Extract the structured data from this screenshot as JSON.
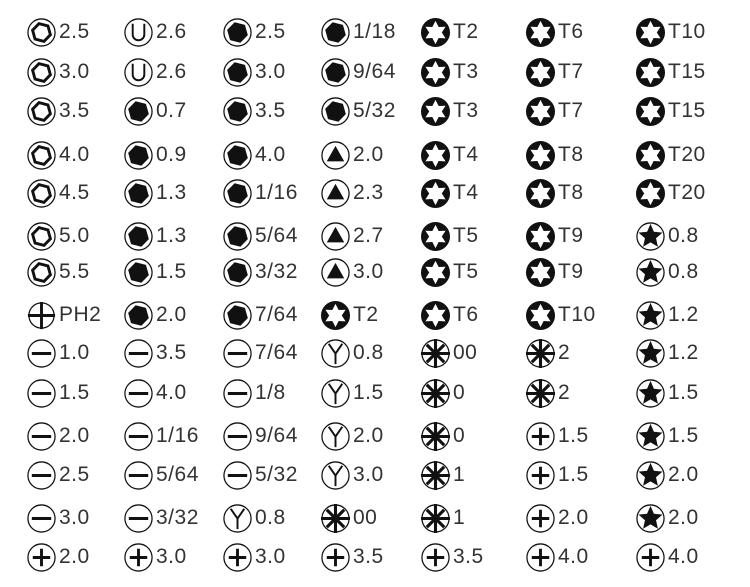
{
  "columns": [
    [
      {
        "icon": "hex-socket-icon",
        "label": "2.5"
      },
      {
        "icon": "hex-socket-icon",
        "label": "3.0"
      },
      {
        "icon": "hex-socket-icon",
        "label": "3.5"
      },
      {
        "icon": "hex-socket-icon",
        "label": "4.0"
      },
      {
        "icon": "hex-socket-icon",
        "label": "4.5"
      },
      {
        "icon": "hex-socket-icon",
        "label": "5.0"
      },
      {
        "icon": "hex-socket-icon",
        "label": "5.5"
      },
      {
        "icon": "phillips-plain-icon",
        "label": "PH2"
      },
      {
        "icon": "slotted-icon",
        "label": "1.0"
      },
      {
        "icon": "slotted-icon",
        "label": "1.5"
      },
      {
        "icon": "slotted-icon",
        "label": "2.0"
      },
      {
        "icon": "slotted-icon",
        "label": "2.5"
      },
      {
        "icon": "slotted-icon",
        "label": "3.0"
      },
      {
        "icon": "phillips-icon",
        "label": "2.0"
      }
    ],
    [
      {
        "icon": "u-shape-icon",
        "label": "2.6"
      },
      {
        "icon": "u-shape-icon",
        "label": "2.6"
      },
      {
        "icon": "hex-icon",
        "label": "0.7"
      },
      {
        "icon": "hex-icon",
        "label": "0.9"
      },
      {
        "icon": "hex-icon",
        "label": "1.3"
      },
      {
        "icon": "hex-icon",
        "label": "1.3"
      },
      {
        "icon": "hex-icon",
        "label": "1.5"
      },
      {
        "icon": "hex-icon",
        "label": "2.0"
      },
      {
        "icon": "slotted-icon",
        "label": "3.5"
      },
      {
        "icon": "slotted-icon",
        "label": "4.0"
      },
      {
        "icon": "slotted-icon",
        "label": "1/16"
      },
      {
        "icon": "slotted-icon",
        "label": "5/64"
      },
      {
        "icon": "slotted-icon",
        "label": "3/32"
      },
      {
        "icon": "phillips-icon",
        "label": "3.0"
      }
    ],
    [
      {
        "icon": "hex-icon",
        "label": "2.5"
      },
      {
        "icon": "hex-icon",
        "label": "3.0"
      },
      {
        "icon": "hex-icon",
        "label": "3.5"
      },
      {
        "icon": "hex-icon",
        "label": "4.0"
      },
      {
        "icon": "hex-icon",
        "label": "1/16"
      },
      {
        "icon": "hex-icon",
        "label": "5/64"
      },
      {
        "icon": "hex-icon",
        "label": "3/32"
      },
      {
        "icon": "hex-icon",
        "label": "7/64"
      },
      {
        "icon": "slotted-icon",
        "label": "7/64"
      },
      {
        "icon": "slotted-icon",
        "label": "1/8"
      },
      {
        "icon": "slotted-icon",
        "label": "9/64"
      },
      {
        "icon": "slotted-icon",
        "label": "5/32"
      },
      {
        "icon": "tri-wing-y-icon",
        "label": "0.8"
      },
      {
        "icon": "phillips-icon",
        "label": "3.0"
      }
    ],
    [
      {
        "icon": "hex-icon",
        "label": "1/18"
      },
      {
        "icon": "hex-icon",
        "label": "9/64"
      },
      {
        "icon": "hex-icon",
        "label": "5/32"
      },
      {
        "icon": "triangle-icon",
        "label": "2.0"
      },
      {
        "icon": "triangle-icon",
        "label": "2.3"
      },
      {
        "icon": "triangle-icon",
        "label": "2.7"
      },
      {
        "icon": "triangle-icon",
        "label": "3.0"
      },
      {
        "icon": "torx-icon",
        "label": "T2"
      },
      {
        "icon": "tri-wing-y-icon",
        "label": "0.8"
      },
      {
        "icon": "tri-wing-y-icon",
        "label": "1.5"
      },
      {
        "icon": "tri-wing-y-icon",
        "label": "2.0"
      },
      {
        "icon": "tri-wing-y-icon",
        "label": "3.0"
      },
      {
        "icon": "asterisk-icon",
        "label": "00"
      },
      {
        "icon": "phillips-icon",
        "label": "3.5"
      }
    ],
    [
      {
        "icon": "torx-icon",
        "label": "T2"
      },
      {
        "icon": "torx-icon",
        "label": "T3"
      },
      {
        "icon": "torx-icon",
        "label": "T3"
      },
      {
        "icon": "torx-icon",
        "label": "T4"
      },
      {
        "icon": "torx-icon",
        "label": "T4"
      },
      {
        "icon": "torx-icon",
        "label": "T5"
      },
      {
        "icon": "torx-icon",
        "label": "T5"
      },
      {
        "icon": "torx-icon",
        "label": "T6"
      },
      {
        "icon": "asterisk-icon",
        "label": "00"
      },
      {
        "icon": "asterisk-icon",
        "label": "0"
      },
      {
        "icon": "asterisk-icon",
        "label": "0"
      },
      {
        "icon": "asterisk-icon",
        "label": "1"
      },
      {
        "icon": "asterisk-icon",
        "label": "1"
      },
      {
        "icon": "phillips-icon",
        "label": "3.5"
      }
    ],
    [
      {
        "icon": "torx-icon",
        "label": "T6"
      },
      {
        "icon": "torx-icon",
        "label": "T7"
      },
      {
        "icon": "torx-icon",
        "label": "T7"
      },
      {
        "icon": "torx-icon",
        "label": "T8"
      },
      {
        "icon": "torx-icon",
        "label": "T8"
      },
      {
        "icon": "torx-icon",
        "label": "T9"
      },
      {
        "icon": "torx-icon",
        "label": "T9"
      },
      {
        "icon": "torx-icon",
        "label": "T10"
      },
      {
        "icon": "asterisk-icon",
        "label": "2"
      },
      {
        "icon": "asterisk-icon",
        "label": "2"
      },
      {
        "icon": "phillips-icon",
        "label": "1.5"
      },
      {
        "icon": "phillips-icon",
        "label": "1.5"
      },
      {
        "icon": "phillips-icon",
        "label": "2.0"
      },
      {
        "icon": "phillips-icon",
        "label": "4.0"
      }
    ],
    [
      {
        "icon": "torx-icon",
        "label": "T10"
      },
      {
        "icon": "torx-icon",
        "label": "T15"
      },
      {
        "icon": "torx-icon",
        "label": "T15"
      },
      {
        "icon": "torx-icon",
        "label": "T20"
      },
      {
        "icon": "torx-icon",
        "label": "T20"
      },
      {
        "icon": "pentalobe-star-icon",
        "label": "0.8"
      },
      {
        "icon": "pentalobe-star-icon",
        "label": "0.8"
      },
      {
        "icon": "pentalobe-star-icon",
        "label": "1.2"
      },
      {
        "icon": "pentalobe-star-icon",
        "label": "1.2"
      },
      {
        "icon": "pentalobe-star-icon",
        "label": "1.5"
      },
      {
        "icon": "pentalobe-star-icon",
        "label": "1.5"
      },
      {
        "icon": "pentalobe-star-icon",
        "label": "2.0"
      },
      {
        "icon": "pentalobe-star-icon",
        "label": "2.0"
      },
      {
        "icon": "phillips-icon",
        "label": "4.0"
      }
    ]
  ]
}
